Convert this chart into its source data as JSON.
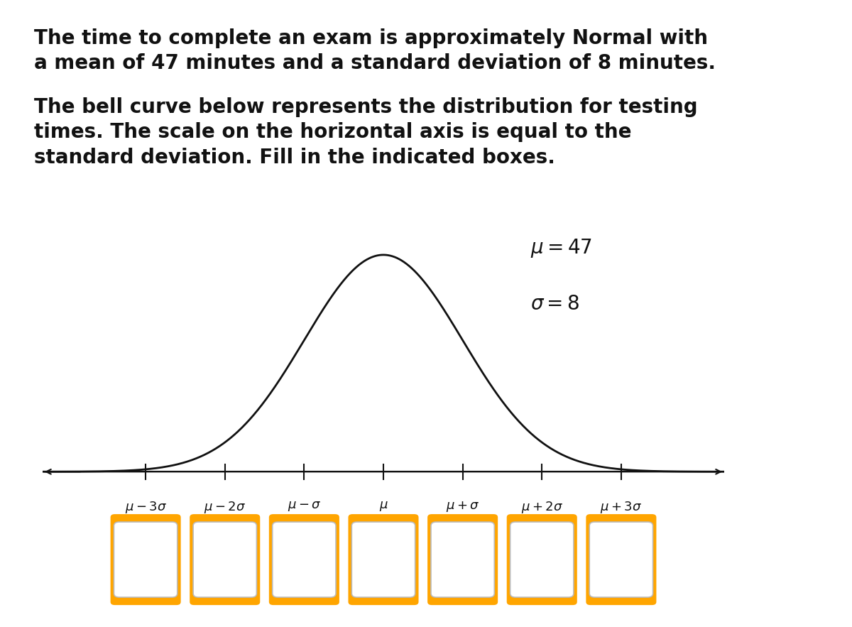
{
  "text_paragraph1_line1": "The time to complete an exam is approximately Normal with",
  "text_paragraph1_line2": "a mean of 47 minutes and a standard deviation of 8 minutes.",
  "text_paragraph2_line1": "The bell curve below represents the distribution for testing",
  "text_paragraph2_line2": "times. The scale on the horizontal axis is equal to the",
  "text_paragraph2_line3": "standard deviation. Fill in the indicated boxes.",
  "mu": 47,
  "sigma": 8,
  "mu_label": "$\\mu = 47$",
  "sigma_label": "$\\sigma = 8$",
  "tick_labels": [
    "$\\mu - 3\\sigma$",
    "$\\mu - 2\\sigma$",
    "$\\mu - \\sigma$",
    "$\\mu$",
    "$\\mu + \\sigma$",
    "$\\mu + 2\\sigma$",
    "$\\mu + 3\\sigma$"
  ],
  "background_color": "#ffffff",
  "curve_color": "#111111",
  "axis_color": "#111111",
  "box_outer_color": "#FFA500",
  "box_inner_color": "#ffffff",
  "box_inner_edge_color": "#bbbbbb",
  "text_color": "#111111",
  "fig_width": 12.0,
  "fig_height": 8.83,
  "text_fontsize": 20,
  "tick_label_fontsize": 13,
  "mu_sigma_fontsize": 20
}
